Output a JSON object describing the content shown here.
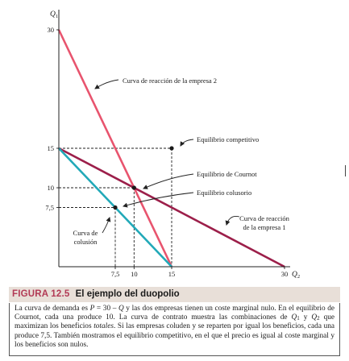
{
  "figure": {
    "number": "FIGURA 12.5",
    "title": "El ejemplo del duopolio",
    "caption": {
      "p1": "La curva de demanda es ",
      "P": "P",
      "p2": " = 30 – ",
      "Q": "Q",
      "p3": " y las dos empresas tienen un coste marginal nulo. En el equilibrio de Cournot, cada una produce 10. La curva de contrato muestra las combinaciones de ",
      "Q1": "Q",
      "sub1": "1",
      "p4": " y ",
      "Q2": "Q",
      "sub2": "2",
      "p5": " que maximizan los beneficios ",
      "totales": "totales",
      "p6": ". Si las empresas coluden y se reparten por igual los beneficios, cada una produce 7,5. También mostramos el equilibrio competitivo, en el que el precio es igual al coste marginal y los beneficios son nulos."
    }
  },
  "colors": {
    "reaction1": "#9c1f4a",
    "reaction2": "#e8546e",
    "collusion": "#22a9b8",
    "axis": "#222222",
    "caption_band": "#e8dfd8",
    "figure_number": "#b23a55"
  },
  "chart_data": {
    "type": "line",
    "xlabel": "Q",
    "xlabel_sub": "2",
    "ylabel": "Q",
    "ylabel_sub": "1",
    "xlim": [
      0,
      30
    ],
    "ylim": [
      0,
      30
    ],
    "x_ticks": [
      "7,5",
      "10",
      "15",
      "30"
    ],
    "x_tick_values": [
      7.5,
      10,
      15,
      30
    ],
    "y_ticks": [
      "7,5",
      "10",
      "15",
      "30"
    ],
    "y_tick_values": [
      7.5,
      10,
      15,
      30
    ],
    "series": [
      {
        "name": "Curva de reacción de la empresa 2",
        "color": "#e8546e",
        "points": [
          [
            0,
            30
          ],
          [
            15,
            0
          ]
        ]
      },
      {
        "name": "Curva de reacción de la empresa 1",
        "color": "#9c1f4a",
        "points": [
          [
            0,
            15
          ],
          [
            30,
            0
          ]
        ]
      },
      {
        "name": "Curva de colusión",
        "color": "#22a9b8",
        "points": [
          [
            0,
            15
          ],
          [
            15,
            0
          ]
        ]
      }
    ],
    "points": [
      {
        "name": "Equilibrio competitivo",
        "x": 15,
        "y": 15
      },
      {
        "name": "Equilibrio de Cournot",
        "x": 10,
        "y": 10
      },
      {
        "name": "Equilibrio colusorio",
        "x": 7.5,
        "y": 7.5
      }
    ],
    "annotations": {
      "reaction2": "Curva de reacción de la empresa 2",
      "competitive": "Equilibrio competitivo",
      "cournot": "Equilibrio de Cournot",
      "collusive": "Equilibrio colusorio",
      "reaction1_line1": "Curva de reacción",
      "reaction1_line2": "de la empresa 1",
      "collusion_line1": "Curva de",
      "collusion_line2": "colusión"
    }
  }
}
